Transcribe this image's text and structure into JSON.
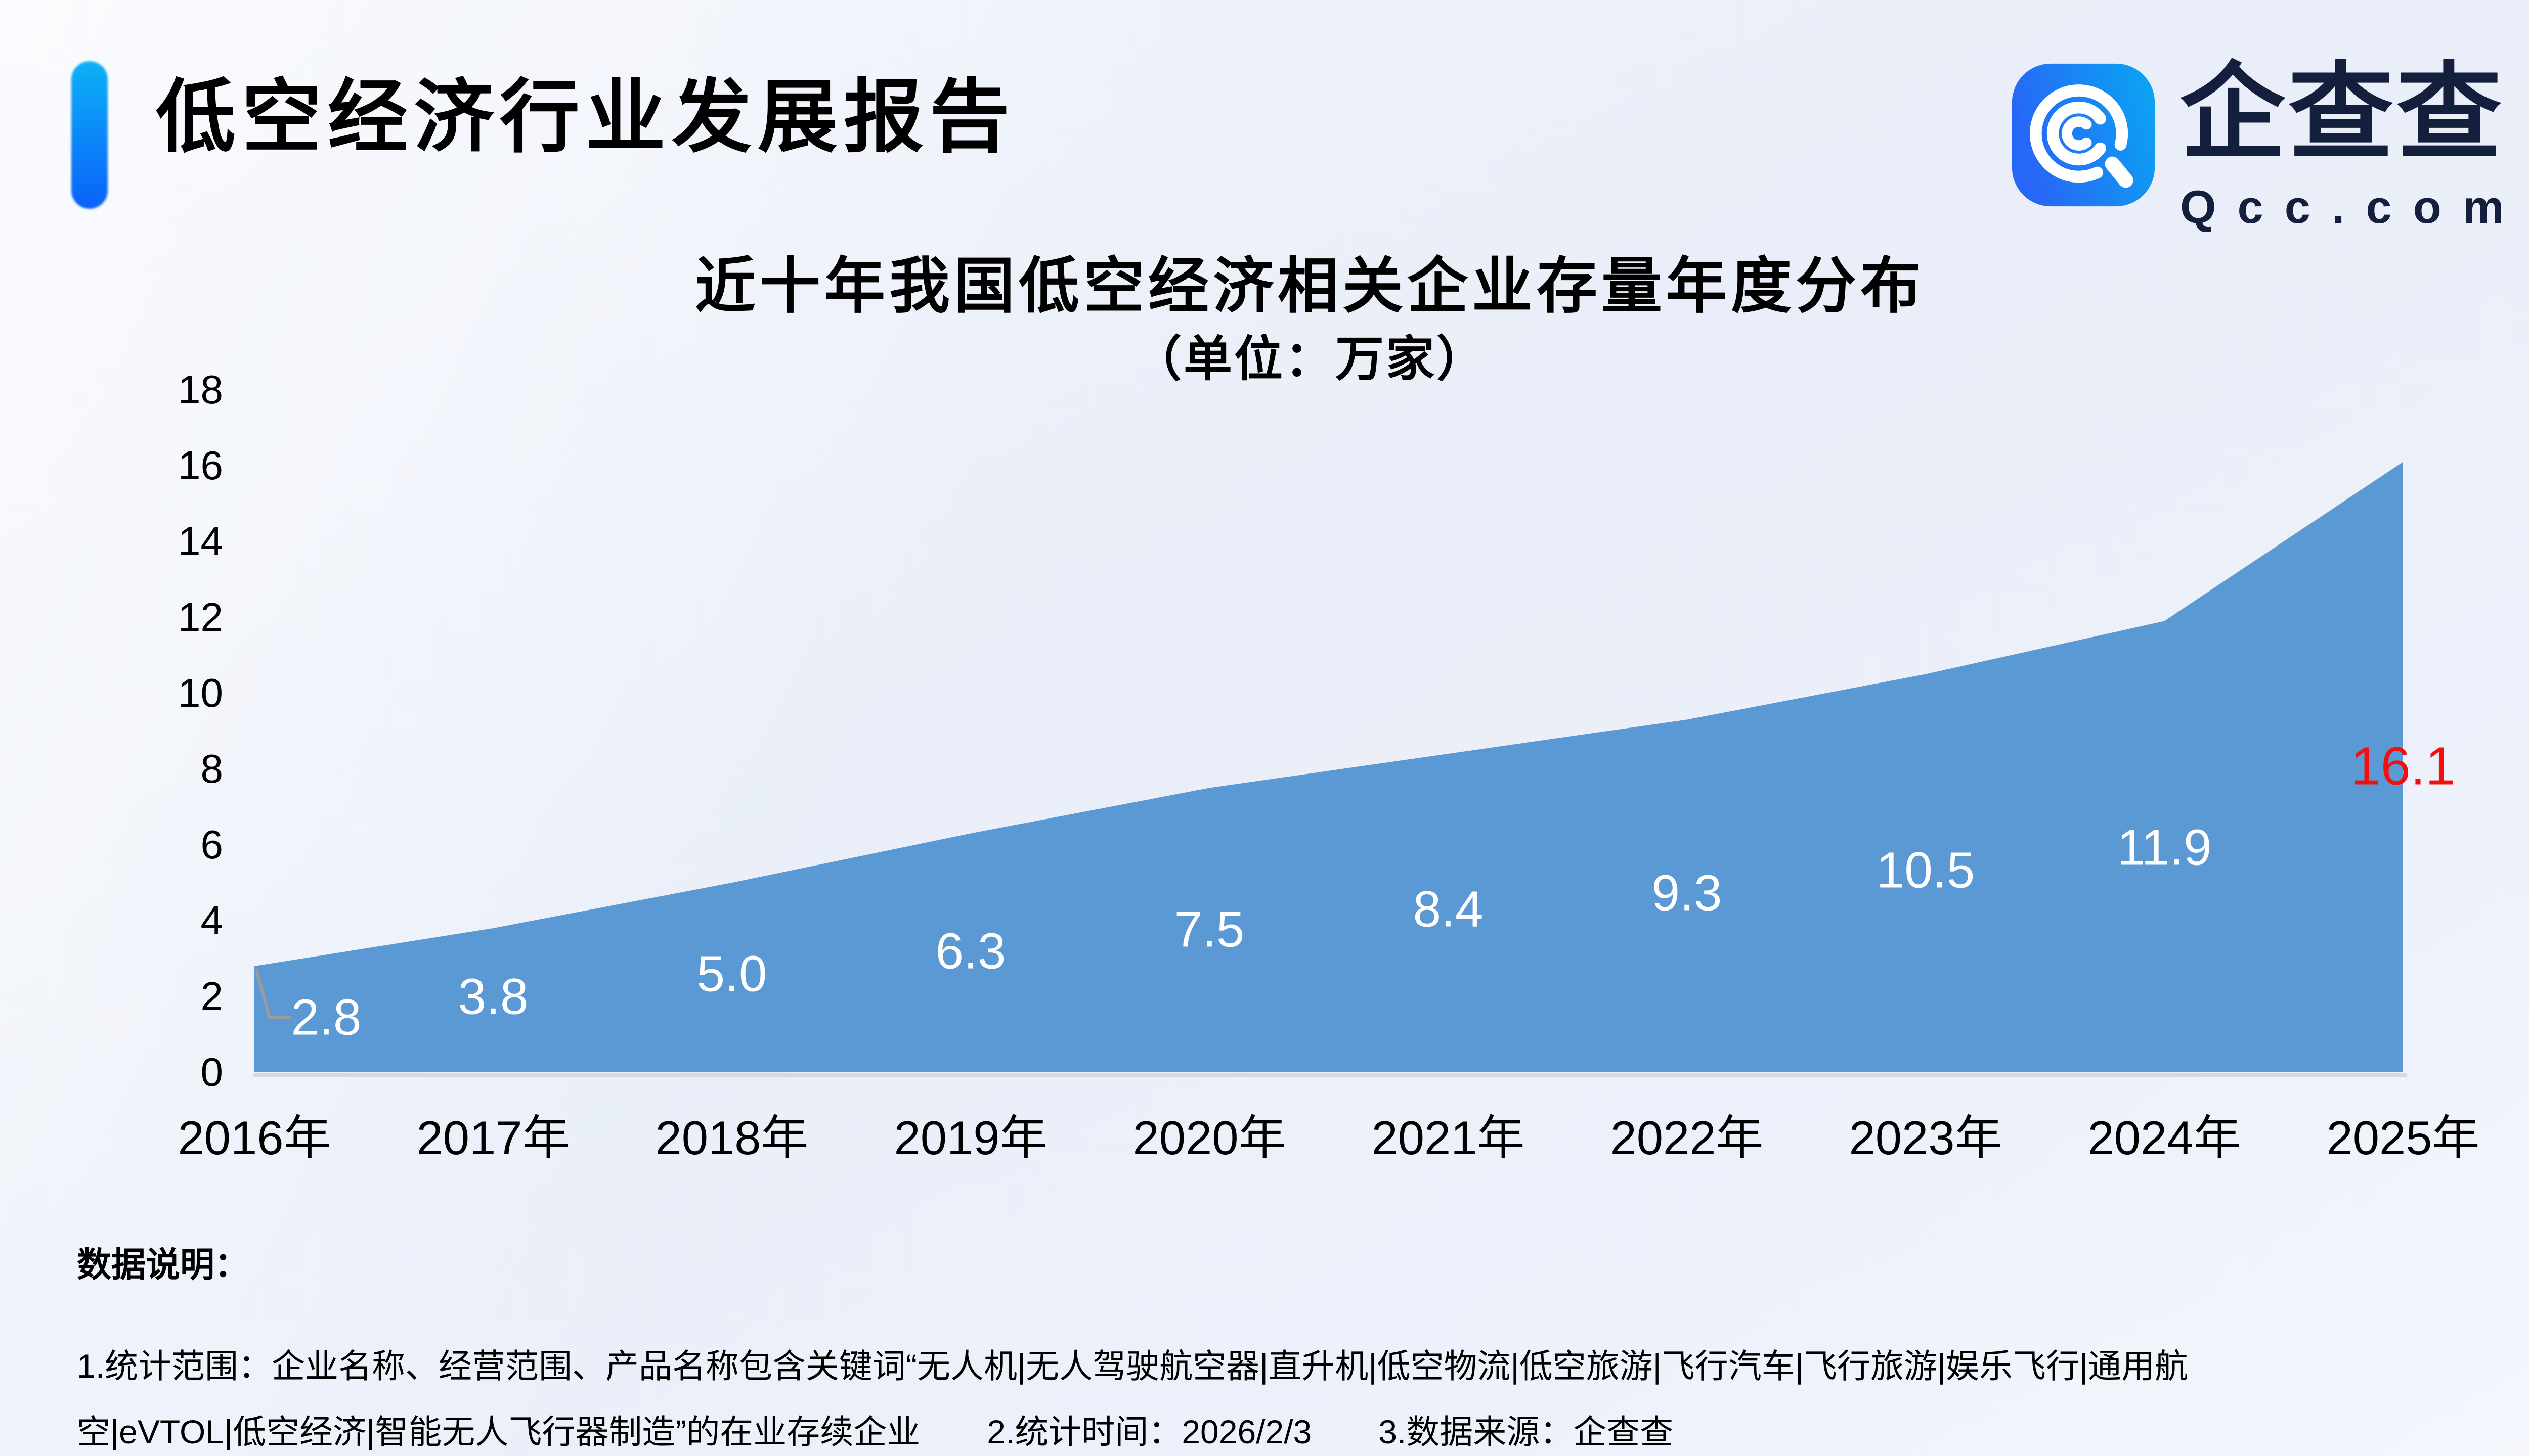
{
  "header": {
    "title": "低空经济行业发展报告",
    "accent_color_top": "#0db1f6",
    "accent_color_bottom": "#0a62fb"
  },
  "logo": {
    "name": "企查查",
    "domain": "Qcc.com",
    "icon": "qcc-magnifier-icon",
    "icon_gradient": [
      "#2767f6",
      "#0aa7f2"
    ],
    "text_color": "#141f3e"
  },
  "chart_data": {
    "type": "area",
    "title": "近十年我国低空经济相关企业存量年度分布",
    "subtitle": "（单位：万家）",
    "categories": [
      "2016年",
      "2017年",
      "2018年",
      "2019年",
      "2020年",
      "2021年",
      "2022年",
      "2023年",
      "2024年",
      "2025年"
    ],
    "values": [
      2.8,
      3.8,
      5.0,
      6.3,
      7.5,
      8.4,
      9.3,
      10.5,
      11.9,
      16.1
    ],
    "value_labels": [
      "2.8",
      "3.8",
      "5.0",
      "6.3",
      "7.5",
      "8.4",
      "9.3",
      "10.5",
      "11.9",
      "16.1"
    ],
    "ylim": [
      0,
      18
    ],
    "ytick_step": 2,
    "yticks": [
      0,
      2,
      4,
      6,
      8,
      10,
      12,
      14,
      16,
      18
    ],
    "grid": false,
    "legend": false,
    "area_color": "#5b99d4",
    "label_color": "#ffffff",
    "last_label_color": "#f70d0d",
    "axis_line_color": "#d7d9dd",
    "leader_line_color": "#9a9b9e",
    "label_offset_x": [
      142,
      0,
      0,
      0,
      0,
      0,
      0,
      0,
      0,
      0
    ],
    "label_offset_y": [
      102,
      136,
      181,
      233,
      280,
      308,
      343,
      388,
      448,
      602
    ]
  },
  "footer": {
    "heading": "数据说明：",
    "lines": [
      "1.统计范围：企业名称、经营范围、产品名称包含关键词“无人机|无人驾驶航空器|直升机|低空物流|低空旅游|飞行汽车|飞行旅游|娱乐飞行|通用航",
      "空|eVTOL|低空经济|智能无人飞行器制造”的在业存续企业　　2.统计时间：2026/2/3　　3.数据来源：企查查"
    ]
  }
}
